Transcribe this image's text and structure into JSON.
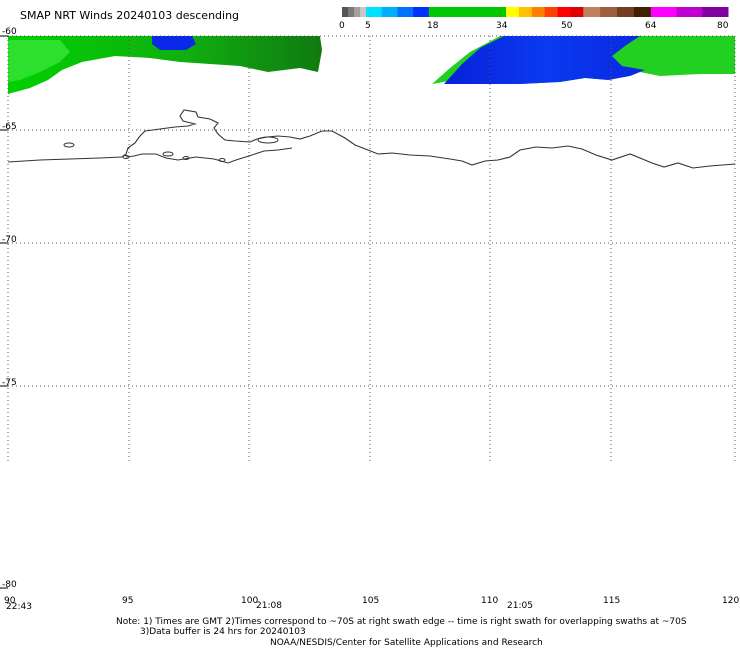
{
  "title": "SMAP NRT Winds  20240103 descending",
  "colorbar": {
    "tick_labels": [
      "0",
      "5",
      "18",
      "34",
      "50",
      "64",
      "80"
    ],
    "segments": [
      {
        "range": [
          0,
          5
        ],
        "colors": [
          "#555555",
          "#7a7a7a",
          "#a0a0a0",
          "#c8c8c8"
        ]
      },
      {
        "range": [
          5,
          18
        ],
        "colors": [
          "#00e0ff",
          "#00b0ff",
          "#0070ff",
          "#0030ff"
        ]
      },
      {
        "range": [
          18,
          34
        ],
        "colors": [
          "#00c800"
        ]
      },
      {
        "range": [
          34,
          50
        ],
        "colors": [
          "#ffff00",
          "#ffc000",
          "#ff8000",
          "#ff4000",
          "#ff0000",
          "#e00000"
        ]
      },
      {
        "range": [
          50,
          64
        ],
        "colors": [
          "#c08060",
          "#9a6040",
          "#704020",
          "#402000"
        ]
      },
      {
        "range": [
          64,
          80
        ],
        "colors": [
          "#ff00ff",
          "#c000d0",
          "#8000a0"
        ]
      }
    ]
  },
  "axes": {
    "lat_labels": [
      "-60",
      "-65",
      "-70",
      "-75",
      "-80"
    ],
    "lon_labels": [
      "90",
      "95",
      "100",
      "105",
      "110",
      "115",
      "120"
    ]
  },
  "swath_times": [
    "22:43",
    "21:08",
    "21:05"
  ],
  "wind_colors": {
    "green": "#00c800",
    "dark_green": "#108a10",
    "blue": "#0a28e8"
  },
  "notes": {
    "line1": "Note: 1) Times are GMT 2)Times correspond to ~70S at right swath edge -- time is right swath for overlapping swaths at ~70S",
    "line2": "3)Data buffer is 24 hrs for 20240103",
    "line3": "NOAA/NESDIS/Center for Satellite Applications and Research"
  }
}
